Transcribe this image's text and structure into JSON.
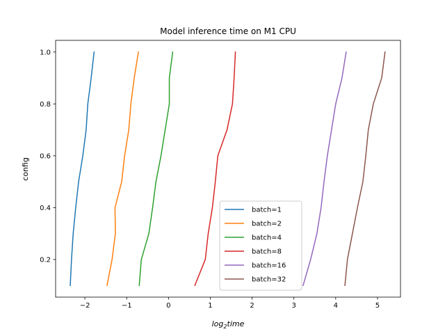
{
  "chart_data": {
    "type": "line",
    "title": "Model inference time on M1 CPU",
    "xlabel": {
      "base": "log",
      "sub": "2",
      "rest": "time"
    },
    "ylabel": "config",
    "xlim": [
      -2.7,
      5.55
    ],
    "ylim": [
      0.055,
      1.045
    ],
    "xticks": [
      -2,
      -1,
      0,
      1,
      2,
      3,
      4,
      5
    ],
    "xtick_labels": [
      "−2",
      "−1",
      "0",
      "1",
      "2",
      "3",
      "4",
      "5"
    ],
    "yticks": [
      0.2,
      0.4,
      0.6,
      0.8,
      1.0
    ],
    "ytick_labels": [
      "0.2",
      "0.4",
      "0.6",
      "0.8",
      "1.0"
    ],
    "grid": false,
    "legend_position": "lower-center",
    "y": [
      0.1,
      0.2,
      0.3,
      0.4,
      0.5,
      0.6,
      0.7,
      0.8,
      0.9,
      1.0
    ],
    "series": [
      {
        "name": "batch=1",
        "color": "#1f77b4",
        "x": [
          -2.35,
          -2.32,
          -2.28,
          -2.22,
          -2.15,
          -2.05,
          -1.97,
          -1.93,
          -1.85,
          -1.78
        ]
      },
      {
        "name": "batch=2",
        "color": "#ff7f0e",
        "x": [
          -1.47,
          -1.35,
          -1.27,
          -1.28,
          -1.12,
          -1.05,
          -0.95,
          -0.9,
          -0.82,
          -0.72
        ]
      },
      {
        "name": "batch=4",
        "color": "#2ca02c",
        "x": [
          -0.7,
          -0.65,
          -0.47,
          -0.38,
          -0.3,
          -0.18,
          -0.08,
          0.02,
          0.02,
          0.1
        ]
      },
      {
        "name": "batch=8",
        "color": "#d62728",
        "x": [
          0.63,
          0.88,
          0.95,
          1.05,
          1.12,
          1.18,
          1.4,
          1.53,
          1.57,
          1.6
        ]
      },
      {
        "name": "batch=16",
        "color": "#9467bd",
        "x": [
          3.22,
          3.4,
          3.55,
          3.65,
          3.72,
          3.8,
          3.9,
          4.0,
          4.15,
          4.25
        ]
      },
      {
        "name": "batch=32",
        "color": "#8c564b",
        "x": [
          4.22,
          4.28,
          4.4,
          4.52,
          4.65,
          4.72,
          4.78,
          4.9,
          5.1,
          5.18
        ]
      }
    ]
  }
}
